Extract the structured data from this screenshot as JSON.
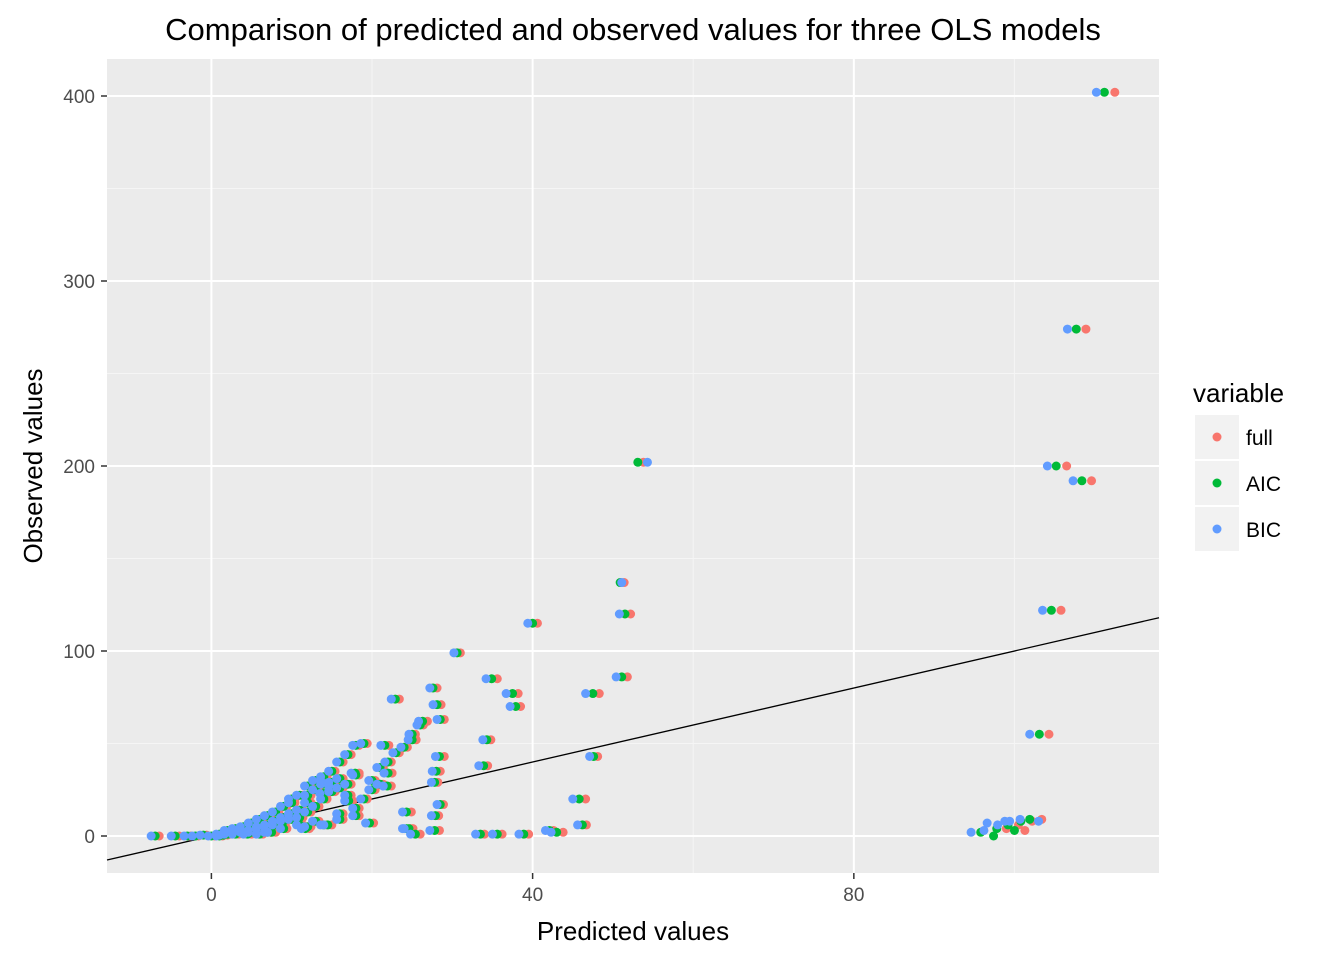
{
  "chart_data": {
    "type": "scatter",
    "title": "Comparison of predicted and observed values for three OLS models",
    "xlabel": "Predicted values",
    "ylabel": "Observed values",
    "xlim": [
      -13,
      118
    ],
    "ylim": [
      -20,
      420
    ],
    "x_ticks": [
      0,
      40,
      80
    ],
    "y_ticks": [
      0,
      100,
      200,
      300,
      400
    ],
    "x_tick_labels": [
      "0",
      "40",
      "80"
    ],
    "y_tick_labels": [
      "0",
      "100",
      "200",
      "300",
      "400"
    ],
    "grid": true,
    "panel_background": "#ebebeb",
    "reference_line": {
      "type": "identity",
      "slope": 1,
      "intercept": 0,
      "color": "#000000"
    },
    "legend": {
      "title": "variable",
      "position": "right"
    },
    "series": [
      {
        "name": "full",
        "color": "#f8766d",
        "points": [
          [
            112.5,
            402
          ],
          [
            108.9,
            274
          ],
          [
            109.6,
            192
          ],
          [
            106.5,
            200
          ],
          [
            105.8,
            122
          ],
          [
            104.3,
            55
          ],
          [
            53.8,
            202
          ],
          [
            52.2,
            120
          ],
          [
            51.8,
            86
          ],
          [
            51.4,
            137
          ],
          [
            48.3,
            77
          ],
          [
            48.1,
            43
          ],
          [
            46.6,
            20
          ],
          [
            46.7,
            6
          ],
          [
            43.8,
            2
          ],
          [
            40.6,
            115
          ],
          [
            38.2,
            77
          ],
          [
            38.5,
            70
          ],
          [
            35.6,
            85
          ],
          [
            34.8,
            52
          ],
          [
            34.4,
            38
          ],
          [
            31,
            99
          ],
          [
            28.1,
            80
          ],
          [
            28.6,
            71
          ],
          [
            29,
            63
          ],
          [
            29,
            43
          ],
          [
            28.5,
            35
          ],
          [
            28.2,
            29
          ],
          [
            28.9,
            17
          ],
          [
            28.3,
            11
          ],
          [
            23.4,
            74
          ],
          [
            26.9,
            62
          ],
          [
            25.5,
            52
          ],
          [
            22.1,
            49
          ],
          [
            22.5,
            34
          ],
          [
            22.4,
            27
          ],
          [
            18.4,
            34
          ],
          [
            17.6,
            19
          ],
          [
            24.9,
            13
          ],
          [
            24.8,
            4
          ],
          [
            28.4,
            3
          ],
          [
            34,
            1
          ],
          [
            36.2,
            1
          ],
          [
            39.5,
            1
          ],
          [
            42.6,
            3
          ],
          [
            26,
            1
          ],
          [
            25.1,
            4
          ],
          [
            20.2,
            7
          ],
          [
            14.5,
            23
          ],
          [
            15,
            6
          ],
          [
            12.2,
            4
          ],
          [
            8,
            2
          ],
          [
            5,
            1
          ],
          [
            2,
            0.5
          ],
          [
            -4,
            0
          ],
          [
            -6.5,
            0
          ],
          [
            102.2,
            8
          ],
          [
            100.5,
            6
          ],
          [
            99,
            4
          ],
          [
            101.3,
            3
          ],
          [
            103.4,
            9
          ]
        ]
      },
      {
        "name": "AIC",
        "color": "#00ba38",
        "points": [
          [
            111.2,
            402
          ],
          [
            107.7,
            274
          ],
          [
            108.4,
            192
          ],
          [
            105.2,
            200
          ],
          [
            104.6,
            122
          ],
          [
            103.1,
            55
          ],
          [
            53.1,
            202
          ],
          [
            51.5,
            120
          ],
          [
            51.1,
            86
          ],
          [
            50.9,
            137
          ],
          [
            47.5,
            77
          ],
          [
            47.6,
            43
          ],
          [
            45.8,
            20
          ],
          [
            46.2,
            6
          ],
          [
            43,
            2
          ],
          [
            40,
            115
          ],
          [
            37.5,
            77
          ],
          [
            37.9,
            70
          ],
          [
            34.9,
            85
          ],
          [
            34.3,
            52
          ],
          [
            33.9,
            38
          ],
          [
            30.6,
            99
          ],
          [
            27.6,
            80
          ],
          [
            28.1,
            71
          ],
          [
            28.5,
            63
          ],
          [
            28.4,
            43
          ],
          [
            28,
            35
          ],
          [
            27.8,
            29
          ],
          [
            28.5,
            17
          ],
          [
            27.9,
            11
          ],
          [
            22.9,
            74
          ],
          [
            26.3,
            62
          ],
          [
            25,
            52
          ],
          [
            21.6,
            49
          ],
          [
            22,
            34
          ],
          [
            21.9,
            27
          ],
          [
            17.9,
            34
          ],
          [
            17.1,
            19
          ],
          [
            24.3,
            13
          ],
          [
            24.3,
            4
          ],
          [
            27.8,
            3
          ],
          [
            33.5,
            1
          ],
          [
            35.6,
            1
          ],
          [
            38.9,
            1
          ],
          [
            42.1,
            3
          ],
          [
            25.4,
            1
          ],
          [
            24.6,
            4
          ],
          [
            19.7,
            7
          ],
          [
            14,
            23
          ],
          [
            14.5,
            6
          ],
          [
            11.7,
            4
          ],
          [
            7.5,
            2
          ],
          [
            4.5,
            1
          ],
          [
            1.5,
            0.5
          ],
          [
            -4.5,
            0
          ],
          [
            -7,
            0
          ],
          [
            100.8,
            8
          ],
          [
            99.2,
            6
          ],
          [
            97.8,
            4
          ],
          [
            100,
            3
          ],
          [
            101.9,
            9
          ],
          [
            95.8,
            2
          ],
          [
            97.4,
            0
          ]
        ]
      },
      {
        "name": "BIC",
        "color": "#619cff",
        "points": [
          [
            110.2,
            402
          ],
          [
            106.6,
            274
          ],
          [
            107.3,
            192
          ],
          [
            104.1,
            200
          ],
          [
            103.5,
            122
          ],
          [
            101.9,
            55
          ],
          [
            54.3,
            202
          ],
          [
            50.8,
            120
          ],
          [
            50.4,
            86
          ],
          [
            51.1,
            137
          ],
          [
            46.6,
            77
          ],
          [
            47.1,
            43
          ],
          [
            45,
            20
          ],
          [
            45.6,
            6
          ],
          [
            42.3,
            2
          ],
          [
            39.4,
            115
          ],
          [
            36.7,
            77
          ],
          [
            37.2,
            70
          ],
          [
            34.2,
            85
          ],
          [
            33.8,
            52
          ],
          [
            33.3,
            38
          ],
          [
            30.2,
            99
          ],
          [
            27.2,
            80
          ],
          [
            27.6,
            71
          ],
          [
            28.1,
            63
          ],
          [
            27.9,
            43
          ],
          [
            27.5,
            35
          ],
          [
            27.4,
            29
          ],
          [
            28.1,
            17
          ],
          [
            27.4,
            11
          ],
          [
            22.4,
            74
          ],
          [
            25.8,
            62
          ],
          [
            24.5,
            52
          ],
          [
            21.1,
            49
          ],
          [
            21.5,
            34
          ],
          [
            21.4,
            27
          ],
          [
            17.4,
            34
          ],
          [
            16.6,
            19
          ],
          [
            23.8,
            13
          ],
          [
            23.8,
            4
          ],
          [
            27.2,
            3
          ],
          [
            32.9,
            1
          ],
          [
            35,
            1
          ],
          [
            38.3,
            1
          ],
          [
            41.6,
            3
          ],
          [
            24.8,
            1
          ],
          [
            24,
            4
          ],
          [
            19.2,
            7
          ],
          [
            13.5,
            23
          ],
          [
            14,
            6
          ],
          [
            11.2,
            4
          ],
          [
            7,
            2
          ],
          [
            4,
            1
          ],
          [
            1,
            0.5
          ],
          [
            -5,
            0
          ],
          [
            -7.5,
            0
          ],
          [
            99.4,
            8
          ],
          [
            97.9,
            6
          ],
          [
            96.6,
            7
          ],
          [
            98.8,
            8
          ],
          [
            100.7,
            9
          ],
          [
            94.6,
            2
          ],
          [
            96.2,
            3
          ],
          [
            103,
            8
          ]
        ]
      }
    ],
    "dense_cluster": {
      "note_only_for_rendering": false,
      "points": [
        [
          0,
          0
        ],
        [
          1,
          1
        ],
        [
          2,
          2
        ],
        [
          3,
          1
        ],
        [
          4,
          3
        ],
        [
          5,
          2
        ],
        [
          6,
          4
        ],
        [
          7,
          5
        ],
        [
          8,
          6
        ],
        [
          9,
          8
        ],
        [
          10,
          9
        ],
        [
          11,
          10
        ],
        [
          12,
          13
        ],
        [
          13,
          16
        ],
        [
          14,
          20
        ],
        [
          15,
          24
        ],
        [
          14,
          28
        ],
        [
          13,
          25
        ],
        [
          12,
          18
        ],
        [
          11,
          14
        ],
        [
          10,
          12
        ],
        [
          9,
          10
        ],
        [
          8,
          8
        ],
        [
          7,
          6
        ],
        [
          6,
          5
        ],
        [
          5,
          3
        ],
        [
          4,
          2
        ],
        [
          3,
          2
        ],
        [
          2,
          1
        ],
        [
          1,
          0
        ],
        [
          10,
          20
        ],
        [
          12,
          22
        ],
        [
          14,
          30
        ],
        [
          15,
          35
        ],
        [
          16,
          40
        ],
        [
          17,
          44
        ],
        [
          18,
          49
        ],
        [
          19,
          50
        ],
        [
          20,
          30
        ],
        [
          21,
          28
        ],
        [
          16,
          31
        ],
        [
          15,
          27
        ],
        [
          17,
          22
        ],
        [
          18,
          15
        ],
        [
          16,
          12
        ],
        [
          13,
          8
        ],
        [
          11,
          6
        ],
        [
          9,
          4
        ],
        [
          7,
          2
        ],
        [
          6,
          1
        ],
        [
          12,
          5
        ],
        [
          14,
          6
        ],
        [
          16,
          9
        ],
        [
          18,
          11
        ],
        [
          19,
          20
        ],
        [
          20,
          25
        ],
        [
          21,
          37
        ],
        [
          22,
          40
        ],
        [
          23,
          45
        ],
        [
          24,
          48
        ],
        [
          25,
          55
        ],
        [
          26,
          60
        ],
        [
          13,
          30
        ],
        [
          14,
          32
        ],
        [
          15,
          29
        ],
        [
          16,
          26
        ],
        [
          17,
          28
        ],
        [
          18,
          33
        ],
        [
          12,
          27
        ],
        [
          11,
          22
        ],
        [
          10,
          18
        ],
        [
          9,
          16
        ],
        [
          8,
          13
        ],
        [
          7,
          11
        ],
        [
          6,
          9
        ],
        [
          5,
          7
        ],
        [
          4,
          5
        ],
        [
          3,
          4
        ],
        [
          2,
          3
        ],
        [
          -2,
          0
        ],
        [
          -3,
          0
        ],
        [
          -1,
          0.5
        ]
      ]
    }
  }
}
